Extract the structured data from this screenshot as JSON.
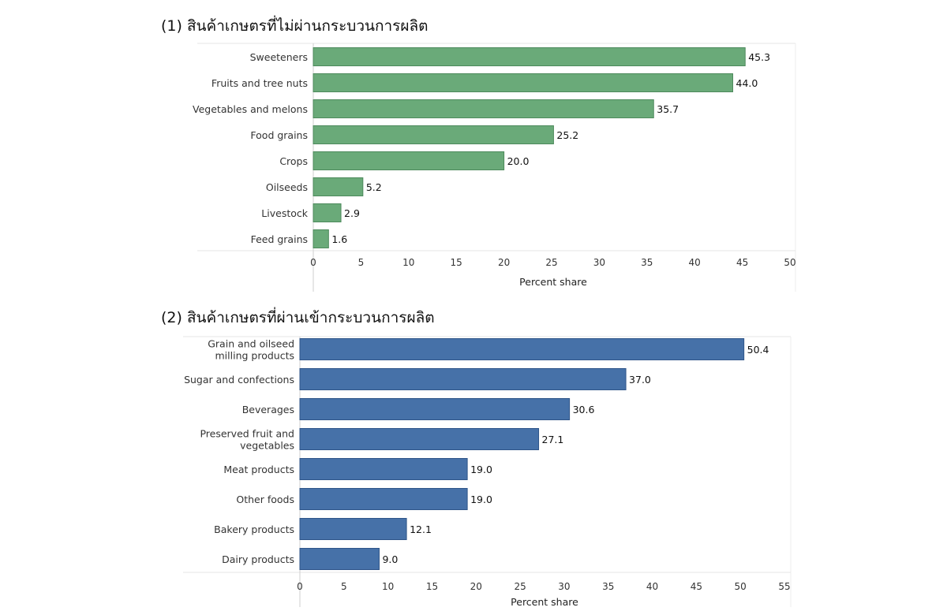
{
  "colors": {
    "green_bar": "#6aaa79",
    "green_edge": "#4d8a5c",
    "blue_bar": "#4671a8",
    "blue_edge": "#2f5589"
  },
  "chart_data": [
    {
      "type": "bar",
      "orientation": "horizontal",
      "title": "(1)  สินค้าเกษตรที่ไม่ผ่านกระบวนการผลิต",
      "categories": [
        "Sweeteners",
        "Fruits and tree nuts",
        "Vegetables and melons",
        "Food grains",
        "Crops",
        "Oilseeds",
        "Livestock",
        "Feed grains"
      ],
      "values": [
        45.3,
        44.0,
        35.7,
        25.2,
        20.0,
        5.2,
        2.9,
        1.6
      ],
      "value_labels": [
        "45.3",
        "44.0",
        "35.7",
        "25.2",
        "20.0",
        "5.2",
        "2.9",
        "1.6"
      ],
      "xlabel": "Percent share",
      "xlim": [
        0,
        50
      ],
      "xticks": [
        0,
        5,
        10,
        15,
        20,
        25,
        30,
        35,
        40,
        45,
        50
      ],
      "grid": false,
      "color": "green"
    },
    {
      "type": "bar",
      "orientation": "horizontal",
      "title": "(2)  สินค้าเกษตรที่ผ่านเข้ากระบวนการผลิต",
      "categories": [
        [
          "Grain and oilseed",
          "milling products"
        ],
        [
          "Sugar and confections"
        ],
        [
          "Beverages"
        ],
        [
          "Preserved fruit and",
          "vegetables"
        ],
        [
          "Meat products"
        ],
        [
          "Other foods"
        ],
        [
          "Bakery products"
        ],
        [
          "Dairy products"
        ]
      ],
      "values": [
        50.4,
        37.0,
        30.6,
        27.1,
        19.0,
        19.0,
        12.1,
        9.0
      ],
      "value_labels": [
        "50.4",
        "37.0",
        "30.6",
        "27.1",
        "19.0",
        "19.0",
        "12.1",
        "9.0"
      ],
      "xlabel": "Percent share",
      "xlim": [
        0,
        55
      ],
      "xticks": [
        0,
        5,
        10,
        15,
        20,
        25,
        30,
        35,
        40,
        45,
        50,
        55
      ],
      "grid": false,
      "color": "blue"
    }
  ]
}
